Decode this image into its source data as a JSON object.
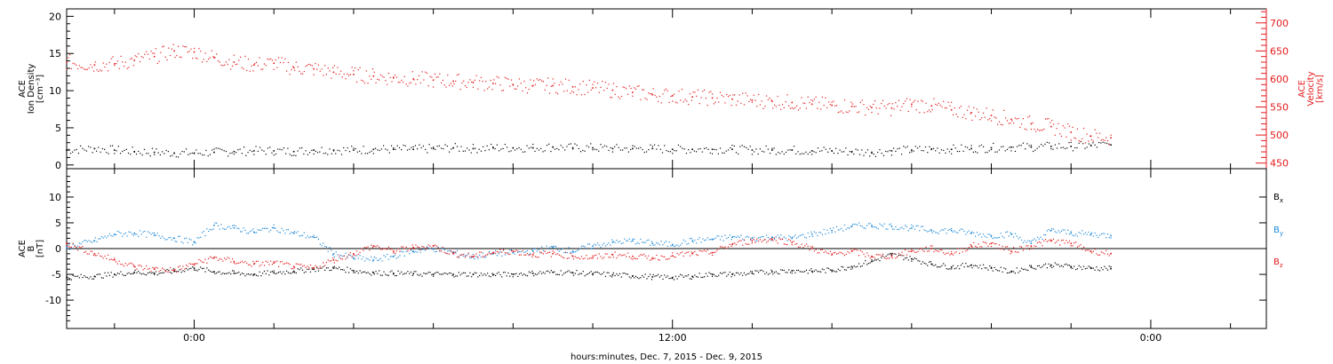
{
  "colors": {
    "black": "#000000",
    "red": "#e41a1c",
    "blue": "#1f8ad9",
    "axis": "#000000"
  },
  "x_axis": {
    "label": "hours:minutes, Dec. 7, 2015 - Dec. 9, 2015",
    "range_hours": [
      -3.2,
      26.9
    ],
    "major_ticks": [
      {
        "hour": 0,
        "label": "0:00"
      },
      {
        "hour": 12,
        "label": "12:00"
      },
      {
        "hour": 24,
        "label": "0:00"
      }
    ],
    "minor_step_hours": 2
  },
  "chart_data": [
    {
      "type": "scatter",
      "panel": "top",
      "ylabel_left": [
        "ACE",
        "Ion Density",
        "[cm⁻³]"
      ],
      "ylabel_right": [
        "ACE",
        "Velocity",
        "[km/s]"
      ],
      "ylim_left": [
        -0.5,
        21
      ],
      "ylim_right": [
        440,
        725
      ],
      "y_ticks_left": [
        0,
        5,
        10,
        15,
        20
      ],
      "y_ticks_right": [
        450,
        500,
        550,
        600,
        650,
        700
      ],
      "series": [
        {
          "axis": "left",
          "color": "#000000",
          "points": [
            [
              -3.2,
              2.0
            ],
            [
              -2.5,
              2.2
            ],
            [
              -2.0,
              2.0
            ],
            [
              -1.5,
              1.8
            ],
            [
              -1.0,
              1.7
            ],
            [
              -0.5,
              1.6
            ],
            [
              0.0,
              1.6
            ],
            [
              0.5,
              1.7
            ],
            [
              1.0,
              1.8
            ],
            [
              1.5,
              1.9
            ],
            [
              2.0,
              1.9
            ],
            [
              2.5,
              1.8
            ],
            [
              3.0,
              2.0
            ],
            [
              3.5,
              2.0
            ],
            [
              4.0,
              2.0
            ],
            [
              4.5,
              2.1
            ],
            [
              5.0,
              2.1
            ],
            [
              5.5,
              2.1
            ],
            [
              6.0,
              2.2
            ],
            [
              6.5,
              2.3
            ],
            [
              7.0,
              2.2
            ],
            [
              7.5,
              2.3
            ],
            [
              8.0,
              2.3
            ],
            [
              8.5,
              2.3
            ],
            [
              9.0,
              2.4
            ],
            [
              9.5,
              2.3
            ],
            [
              10.0,
              2.3
            ],
            [
              10.5,
              2.2
            ],
            [
              11.0,
              2.2
            ],
            [
              11.5,
              2.2
            ],
            [
              12.0,
              2.1
            ],
            [
              12.5,
              2.1
            ],
            [
              13.0,
              2.1
            ],
            [
              13.5,
              2.1
            ],
            [
              14.0,
              2.0
            ],
            [
              14.5,
              2.0
            ],
            [
              15.0,
              2.0
            ],
            [
              15.5,
              1.9
            ],
            [
              16.0,
              1.9
            ],
            [
              16.5,
              1.8
            ],
            [
              17.0,
              1.7
            ],
            [
              17.5,
              1.9
            ],
            [
              18.0,
              2.0
            ],
            [
              18.5,
              2.1
            ],
            [
              19.0,
              2.1
            ],
            [
              19.5,
              2.2
            ],
            [
              20.0,
              2.3
            ],
            [
              20.5,
              2.4
            ],
            [
              21.0,
              2.4
            ],
            [
              21.5,
              2.5
            ],
            [
              22.0,
              2.5
            ],
            [
              22.5,
              2.6
            ],
            [
              23.0,
              2.7
            ]
          ]
        },
        {
          "axis": "right",
          "color": "#e41a1c",
          "points": [
            [
              -3.2,
              630
            ],
            [
              -2.5,
              625
            ],
            [
              -2.0,
              627
            ],
            [
              -1.5,
              633
            ],
            [
              -1.0,
              640
            ],
            [
              -0.5,
              650
            ],
            [
              0.0,
              648
            ],
            [
              0.5,
              638
            ],
            [
              1.0,
              630
            ],
            [
              1.5,
              625
            ],
            [
              2.0,
              628
            ],
            [
              2.5,
              620
            ],
            [
              3.0,
              618
            ],
            [
              3.5,
              612
            ],
            [
              4.0,
              608
            ],
            [
              4.5,
              605
            ],
            [
              5.0,
              602
            ],
            [
              5.5,
              600
            ],
            [
              6.0,
              598
            ],
            [
              6.5,
              596
            ],
            [
              7.0,
              594
            ],
            [
              7.5,
              592
            ],
            [
              8.0,
              590
            ],
            [
              8.5,
              588
            ],
            [
              9.0,
              588
            ],
            [
              9.5,
              586
            ],
            [
              10.0,
              584
            ],
            [
              10.5,
              580
            ],
            [
              11.0,
              576
            ],
            [
              11.5,
              572
            ],
            [
              12.0,
              570
            ],
            [
              12.5,
              568
            ],
            [
              13.0,
              566
            ],
            [
              13.5,
              564
            ],
            [
              14.0,
              562
            ],
            [
              14.5,
              560
            ],
            [
              15.0,
              558
            ],
            [
              15.5,
              555
            ],
            [
              16.0,
              553
            ],
            [
              16.5,
              551
            ],
            [
              17.0,
              549
            ],
            [
              17.5,
              548
            ],
            [
              18.0,
              555
            ],
            [
              18.5,
              552
            ],
            [
              19.0,
              545
            ],
            [
              19.5,
              540
            ],
            [
              20.0,
              535
            ],
            [
              20.5,
              528
            ],
            [
              21.0,
              520
            ],
            [
              21.5,
              515
            ],
            [
              22.0,
              505
            ],
            [
              22.5,
              498
            ],
            [
              23.0,
              495
            ]
          ]
        }
      ]
    },
    {
      "type": "scatter",
      "panel": "bottom",
      "ylabel_left": [
        "ACE",
        "B",
        "[nT]"
      ],
      "ylim": [
        -15.5,
        15.5
      ],
      "y_ticks": [
        -10,
        -5,
        0,
        5,
        10
      ],
      "legend": [
        {
          "name": "B",
          "sub": "x",
          "color": "#000000"
        },
        {
          "name": "B",
          "sub": "y",
          "color": "#1f8ad9"
        },
        {
          "name": "B",
          "sub": "z",
          "color": "#e41a1c"
        }
      ],
      "series": [
        {
          "name": "Bx",
          "color": "#000000",
          "points": [
            [
              -3.2,
              -5.6
            ],
            [
              -2.5,
              -5.4
            ],
            [
              -2.0,
              -5.0
            ],
            [
              -1.5,
              -4.6
            ],
            [
              -1.0,
              -4.8
            ],
            [
              -0.5,
              -4.4
            ],
            [
              0.0,
              -3.8
            ],
            [
              0.5,
              -4.5
            ],
            [
              1.0,
              -4.8
            ],
            [
              1.5,
              -5.0
            ],
            [
              2.0,
              -4.7
            ],
            [
              2.5,
              -4.4
            ],
            [
              3.0,
              -4.0
            ],
            [
              3.5,
              -3.8
            ],
            [
              4.0,
              -4.3
            ],
            [
              4.5,
              -4.7
            ],
            [
              5.0,
              -4.8
            ],
            [
              5.5,
              -4.9
            ],
            [
              6.0,
              -5.0
            ],
            [
              6.5,
              -5.0
            ],
            [
              7.0,
              -5.0
            ],
            [
              7.5,
              -5.1
            ],
            [
              8.0,
              -5.0
            ],
            [
              8.5,
              -4.8
            ],
            [
              9.0,
              -4.6
            ],
            [
              9.5,
              -4.7
            ],
            [
              10.0,
              -4.9
            ],
            [
              10.5,
              -5.1
            ],
            [
              11.0,
              -5.3
            ],
            [
              11.5,
              -5.5
            ],
            [
              12.0,
              -5.6
            ],
            [
              12.5,
              -5.4
            ],
            [
              13.0,
              -5.0
            ],
            [
              13.5,
              -5.0
            ],
            [
              14.0,
              -4.8
            ],
            [
              14.5,
              -4.5
            ],
            [
              15.0,
              -4.3
            ],
            [
              15.5,
              -4.4
            ],
            [
              16.0,
              -4.2
            ],
            [
              16.5,
              -3.5
            ],
            [
              17.0,
              -2.5
            ],
            [
              17.5,
              -1.2
            ],
            [
              18.0,
              -2.0
            ],
            [
              18.5,
              -3.0
            ],
            [
              19.0,
              -3.6
            ],
            [
              19.5,
              -3.2
            ],
            [
              20.0,
              -3.8
            ],
            [
              20.5,
              -4.5
            ],
            [
              21.0,
              -3.6
            ],
            [
              21.5,
              -3.2
            ],
            [
              22.0,
              -3.5
            ],
            [
              22.5,
              -3.8
            ],
            [
              23.0,
              -3.9
            ]
          ]
        },
        {
          "name": "By",
          "color": "#1f8ad9",
          "points": [
            [
              -3.2,
              0.2
            ],
            [
              -2.5,
              1.5
            ],
            [
              -2.0,
              2.8
            ],
            [
              -1.5,
              3.0
            ],
            [
              -1.0,
              2.6
            ],
            [
              -0.5,
              2.0
            ],
            [
              0.0,
              1.2
            ],
            [
              0.5,
              4.5
            ],
            [
              1.0,
              4.0
            ],
            [
              1.5,
              3.2
            ],
            [
              2.0,
              4.0
            ],
            [
              2.5,
              3.0
            ],
            [
              3.0,
              2.2
            ],
            [
              3.5,
              -1.0
            ],
            [
              4.0,
              -1.8
            ],
            [
              4.5,
              -2.2
            ],
            [
              5.0,
              -1.5
            ],
            [
              5.5,
              -0.5
            ],
            [
              6.0,
              0.0
            ],
            [
              6.5,
              -0.8
            ],
            [
              7.0,
              -1.6
            ],
            [
              7.5,
              -1.0
            ],
            [
              8.0,
              -0.8
            ],
            [
              8.5,
              -0.5
            ],
            [
              9.0,
              0.2
            ],
            [
              9.5,
              -0.5
            ],
            [
              10.0,
              0.5
            ],
            [
              10.5,
              1.2
            ],
            [
              11.0,
              1.5
            ],
            [
              11.5,
              1.0
            ],
            [
              12.0,
              0.8
            ],
            [
              12.5,
              1.5
            ],
            [
              13.0,
              1.8
            ],
            [
              13.5,
              2.2
            ],
            [
              14.0,
              2.0
            ],
            [
              14.5,
              2.2
            ],
            [
              15.0,
              2.0
            ],
            [
              15.5,
              2.8
            ],
            [
              16.0,
              3.5
            ],
            [
              16.5,
              4.3
            ],
            [
              17.0,
              4.5
            ],
            [
              17.5,
              4.3
            ],
            [
              18.0,
              4.0
            ],
            [
              18.5,
              3.5
            ],
            [
              19.0,
              3.5
            ],
            [
              19.5,
              3.0
            ],
            [
              20.0,
              2.5
            ],
            [
              20.5,
              2.8
            ],
            [
              21.0,
              1.0
            ],
            [
              21.5,
              3.5
            ],
            [
              22.0,
              3.0
            ],
            [
              22.5,
              2.8
            ],
            [
              23.0,
              2.5
            ]
          ]
        },
        {
          "name": "Bz",
          "color": "#e41a1c",
          "points": [
            [
              -3.2,
              1.0
            ],
            [
              -2.5,
              -1.0
            ],
            [
              -2.0,
              -2.2
            ],
            [
              -1.5,
              -3.5
            ],
            [
              -1.0,
              -4.0
            ],
            [
              -0.5,
              -4.2
            ],
            [
              0.0,
              -3.0
            ],
            [
              0.5,
              -1.8
            ],
            [
              1.0,
              -2.5
            ],
            [
              1.5,
              -3.0
            ],
            [
              2.0,
              -2.8
            ],
            [
              2.5,
              -3.5
            ],
            [
              3.0,
              -3.8
            ],
            [
              3.5,
              -2.2
            ],
            [
              4.0,
              -1.0
            ],
            [
              4.5,
              0.5
            ],
            [
              5.0,
              -0.5
            ],
            [
              5.5,
              0.2
            ],
            [
              6.0,
              0.5
            ],
            [
              6.5,
              -1.0
            ],
            [
              7.0,
              -1.5
            ],
            [
              7.5,
              -0.8
            ],
            [
              8.0,
              -0.5
            ],
            [
              8.5,
              -1.2
            ],
            [
              9.0,
              -1.0
            ],
            [
              9.5,
              -1.5
            ],
            [
              10.0,
              -1.8
            ],
            [
              10.5,
              -1.2
            ],
            [
              11.0,
              -1.5
            ],
            [
              11.5,
              -1.8
            ],
            [
              12.0,
              -1.4
            ],
            [
              12.5,
              -1.0
            ],
            [
              13.0,
              -0.8
            ],
            [
              13.5,
              0.8
            ],
            [
              14.0,
              1.5
            ],
            [
              14.5,
              1.8
            ],
            [
              15.0,
              1.2
            ],
            [
              15.5,
              0.0
            ],
            [
              16.0,
              -1.2
            ],
            [
              16.5,
              -0.5
            ],
            [
              17.0,
              -1.5
            ],
            [
              17.5,
              -1.5
            ],
            [
              18.0,
              -0.5
            ],
            [
              18.5,
              0.0
            ],
            [
              19.0,
              -1.0
            ],
            [
              19.5,
              0.5
            ],
            [
              20.0,
              1.0
            ],
            [
              20.5,
              -0.5
            ],
            [
              21.0,
              0.5
            ],
            [
              21.5,
              1.5
            ],
            [
              22.0,
              1.0
            ],
            [
              22.5,
              -0.5
            ],
            [
              23.0,
              -1.0
            ]
          ]
        }
      ]
    }
  ]
}
